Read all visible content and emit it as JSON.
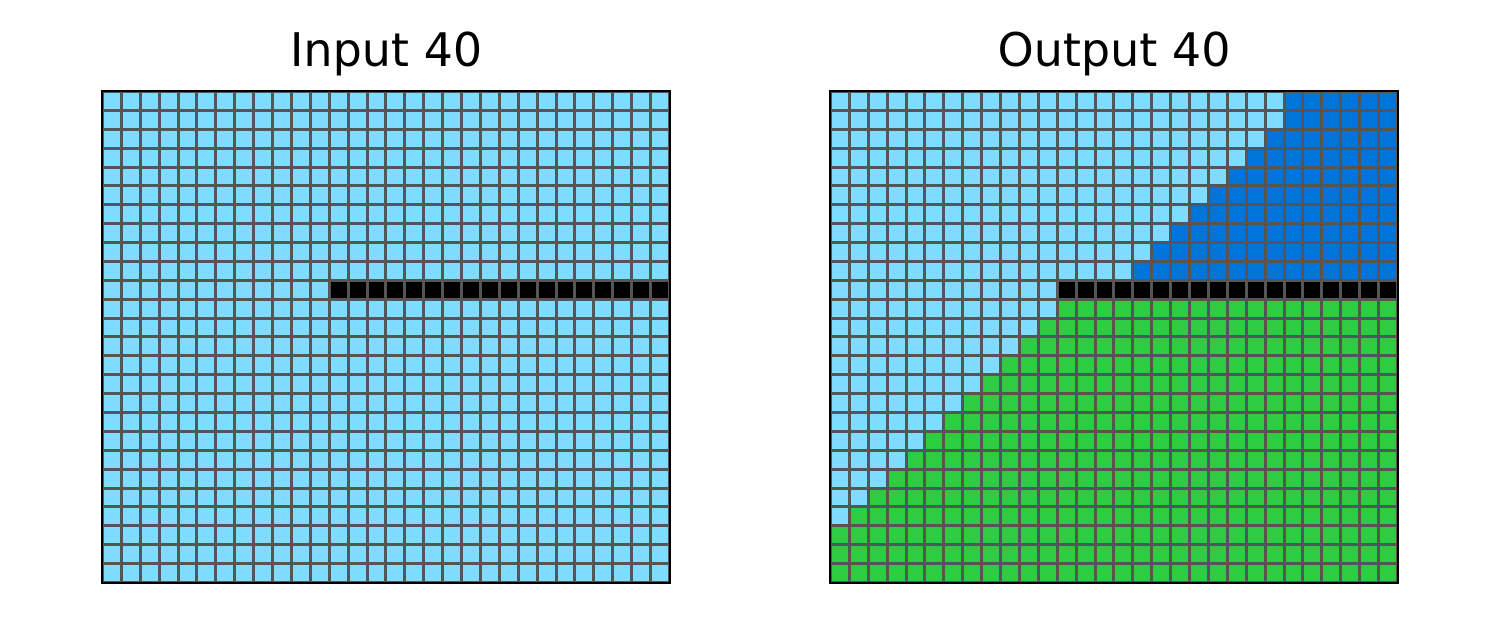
{
  "panels": {
    "input": {
      "title": "Input 40"
    },
    "output": {
      "title": "Output 40"
    }
  },
  "palette": {
    "0": "#000000",
    "1": "#0074D9",
    "3": "#2ECC40",
    "8": "#7FDBFF",
    "grid_line": "#555555"
  },
  "grid_size": {
    "rows": 26,
    "cols": 30
  },
  "line": {
    "row": 10,
    "start_col": 12
  },
  "input_grid": [
    "888888888888888888888888888888",
    "888888888888888888888888888888",
    "888888888888888888888888888888",
    "888888888888888888888888888888",
    "888888888888888888888888888888",
    "888888888888888888888888888888",
    "888888888888888888888888888888",
    "888888888888888888888888888888",
    "888888888888888888888888888888",
    "888888888888888888888888888888",
    "888888888888000000000000000000",
    "888888888888888888888888888888",
    "888888888888888888888888888888",
    "888888888888888888888888888888",
    "888888888888888888888888888888",
    "888888888888888888888888888888",
    "888888888888888888888888888888",
    "888888888888888888888888888888",
    "888888888888888888888888888888",
    "888888888888888888888888888888",
    "888888888888888888888888888888",
    "888888888888888888888888888888",
    "888888888888888888888888888888",
    "888888888888888888888888888888",
    "888888888888888888888888888888",
    "888888888888888888888888888888"
  ],
  "output_grid": [
    "888888888888888888888888111111",
    "888888888888888888888888111111",
    "888888888888888888888881111111",
    "888888888888888888888811111111",
    "888888888888888888888111111111",
    "888888888888888888881111111111",
    "888888888888888888811111111111",
    "888888888888888888111111111111",
    "888888888888888881111111111111",
    "888888888888888811111111111111",
    "888888888888000000000000000000",
    "888888888888333333333333333333",
    "888888888883333333333333333333",
    "888888888833333333333333333333",
    "888888888333333333333333333333",
    "888888883333333333333333333333",
    "888888833333333333333333333333",
    "888888333333333333333333333333",
    "888883333333333333333333333333",
    "888833333333333333333333333333",
    "888333333333333333333333333333",
    "883333333333333333333333333333",
    "833333333333333333333333333333",
    "333333333333333333333333333333",
    "333333333333333333333333333333",
    "333333333333333333333333333333"
  ]
}
